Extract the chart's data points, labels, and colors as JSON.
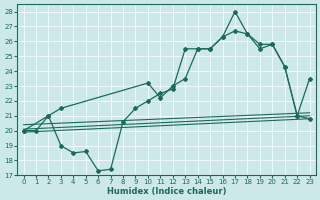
{
  "xlabel": "Humidex (Indice chaleur)",
  "xlim": [
    -0.5,
    23.5
  ],
  "ylim": [
    17,
    28.5
  ],
  "yticks": [
    17,
    18,
    19,
    20,
    21,
    22,
    23,
    24,
    25,
    26,
    27,
    28
  ],
  "xticks": [
    0,
    1,
    2,
    3,
    4,
    5,
    6,
    7,
    8,
    9,
    10,
    11,
    12,
    13,
    14,
    15,
    16,
    17,
    18,
    19,
    20,
    21,
    22,
    23
  ],
  "bg_color": "#cce8e8",
  "line_color": "#1a6b5a",
  "line_grid_color": "#b8d8d8",
  "line1_x": [
    0,
    1,
    2,
    3,
    4,
    5,
    6,
    7,
    8,
    9,
    10,
    11,
    12,
    13,
    14,
    15,
    16,
    17,
    18,
    19,
    20,
    21,
    22,
    23
  ],
  "line1_y": [
    20.0,
    20.0,
    21.0,
    19.0,
    18.5,
    18.6,
    17.3,
    17.4,
    20.6,
    21.5,
    22.0,
    22.5,
    22.8,
    25.5,
    25.5,
    25.5,
    26.3,
    28.0,
    26.5,
    25.8,
    25.8,
    24.3,
    21.0,
    23.5
  ],
  "line2_x": [
    0,
    2,
    3,
    10,
    11,
    12,
    13,
    14,
    15,
    16,
    17,
    18,
    19,
    20,
    21,
    22,
    23
  ],
  "line2_y": [
    20.0,
    21.0,
    21.5,
    23.2,
    22.2,
    23.0,
    23.5,
    25.5,
    25.5,
    26.3,
    26.7,
    26.5,
    25.5,
    25.8,
    24.3,
    21.0,
    20.8
  ],
  "line3_x": [
    0,
    23
  ],
  "line3_y": [
    20.1,
    21.0
  ],
  "line4_x": [
    0,
    23
  ],
  "line4_y": [
    20.4,
    21.2
  ],
  "line5_x": [
    0,
    23
  ],
  "line5_y": [
    19.9,
    20.8
  ]
}
